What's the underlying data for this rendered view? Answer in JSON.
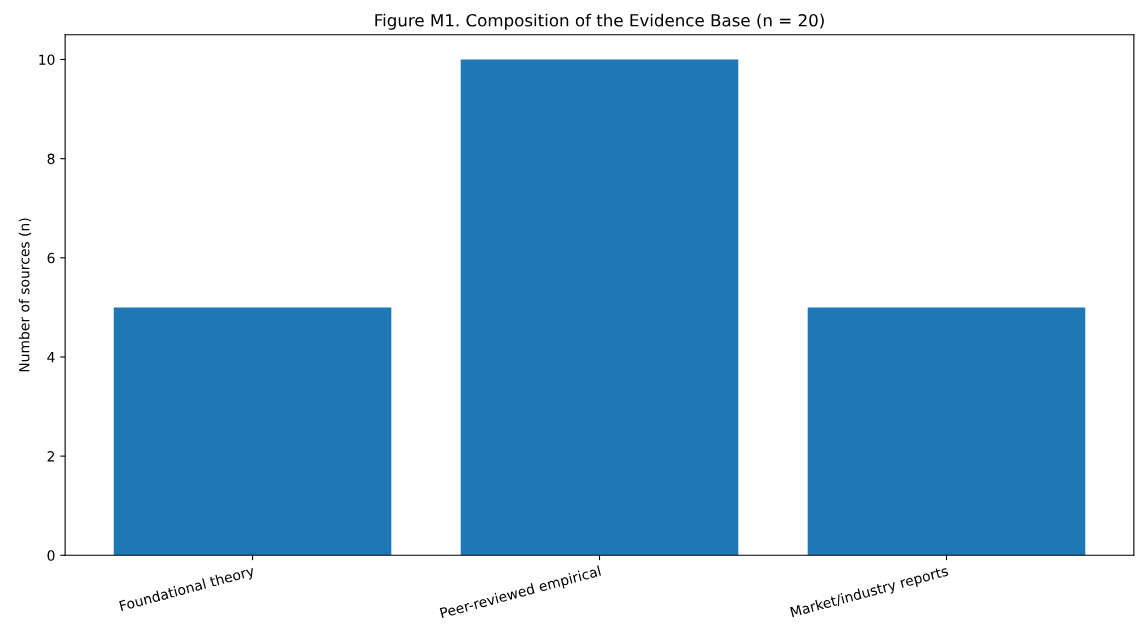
{
  "chart_data": {
    "type": "bar",
    "title": "Figure M1. Composition of the Evidence Base (n = 20)",
    "ylabel": "Number of sources (n)",
    "categories": [
      "Foundational theory",
      "Peer-reviewed empirical",
      "Market/industry reports"
    ],
    "values": [
      5,
      10,
      5
    ],
    "color": "#1f77b4",
    "ylim": [
      0,
      10.5
    ],
    "yticks": [
      0,
      2,
      4,
      6,
      8,
      10
    ],
    "grid": false,
    "legend": false
  }
}
